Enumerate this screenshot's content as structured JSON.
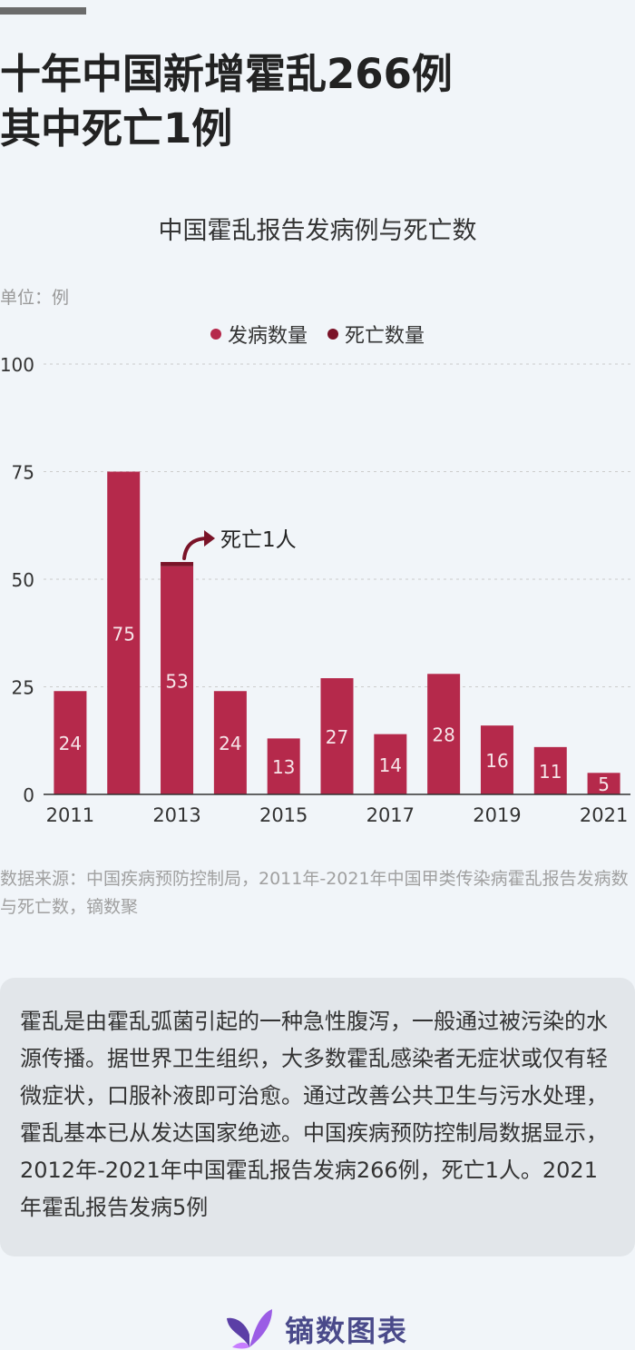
{
  "headline": {
    "line1": "十年中国新增霍乱266例",
    "line2": "其中死亡1例"
  },
  "unit_label": "单位：例",
  "colors": {
    "cases": "#b5294b",
    "deaths": "#7a1328",
    "axis": "#333333",
    "grid": "#cccccc"
  },
  "chart_data": {
    "type": "bar",
    "title": "中国霍乱报告发病例与死亡数",
    "xlabel": "",
    "ylabel": "",
    "ylim": [
      0,
      100
    ],
    "yticks": [
      0,
      25,
      50,
      75,
      100
    ],
    "categories": [
      "2011",
      "2012",
      "2013",
      "2014",
      "2015",
      "2016",
      "2017",
      "2018",
      "2019",
      "2020",
      "2021"
    ],
    "x_tick_labels": [
      "2011",
      "",
      "2013",
      "",
      "2015",
      "",
      "2017",
      "",
      "2019",
      "",
      "2021"
    ],
    "series": [
      {
        "name": "发病数量",
        "values": [
          24,
          75,
          53,
          24,
          13,
          27,
          14,
          28,
          16,
          11,
          5
        ]
      },
      {
        "name": "死亡数量",
        "values": [
          0,
          0,
          1,
          0,
          0,
          0,
          0,
          0,
          0,
          0,
          0
        ]
      }
    ],
    "annotation": {
      "text": "死亡1人",
      "category": "2013"
    },
    "legend_position": "top-center",
    "grid": true
  },
  "source_text": "数据来源：中国疾病预防控制局，2011年-2021年中国甲类传染病霍乱报告发病数与死亡数，镝数聚",
  "note_text": "霍乱是由霍乱弧菌引起的一种急性腹泻，一般通过被污染的水源传播。据世界卫生组织，大多数霍乱感染者无症状或仅有轻微症状，口服补液即可治愈。通过改善公共卫生与污水处理，霍乱基本已从发达国家绝迹。中国疾病预防控制局数据显示，2012年-2021年中国霍乱报告发病266例，死亡1人。2021年霍乱报告发病5例",
  "brand": {
    "name": "镝数图表",
    "logo_icon": "butterfly-logo-icon"
  }
}
